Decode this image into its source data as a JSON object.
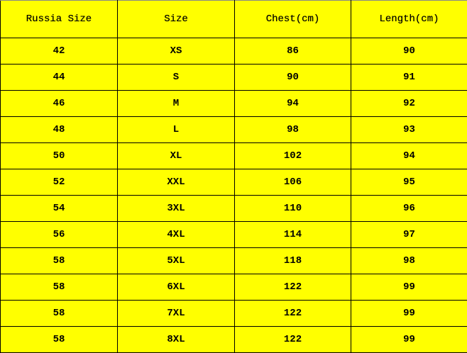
{
  "table": {
    "headers": [
      "Russia Size",
      "Size",
      "Chest(cm)",
      "Length(cm)"
    ],
    "rows": [
      [
        "42",
        "XS",
        "86",
        "90"
      ],
      [
        "44",
        "S",
        "90",
        "91"
      ],
      [
        "46",
        "M",
        "94",
        "92"
      ],
      [
        "48",
        "L",
        "98",
        "93"
      ],
      [
        "50",
        "XL",
        "102",
        "94"
      ],
      [
        "52",
        "XXL",
        "106",
        "95"
      ],
      [
        "54",
        "3XL",
        "110",
        "96"
      ],
      [
        "56",
        "4XL",
        "114",
        "97"
      ],
      [
        "58",
        "5XL",
        "118",
        "98"
      ],
      [
        "58",
        "6XL",
        "122",
        "99"
      ],
      [
        "58",
        "7XL",
        "122",
        "99"
      ],
      [
        "58",
        "8XL",
        "122",
        "99"
      ]
    ]
  },
  "colors": {
    "background": "#ffff00",
    "border": "#000000"
  }
}
